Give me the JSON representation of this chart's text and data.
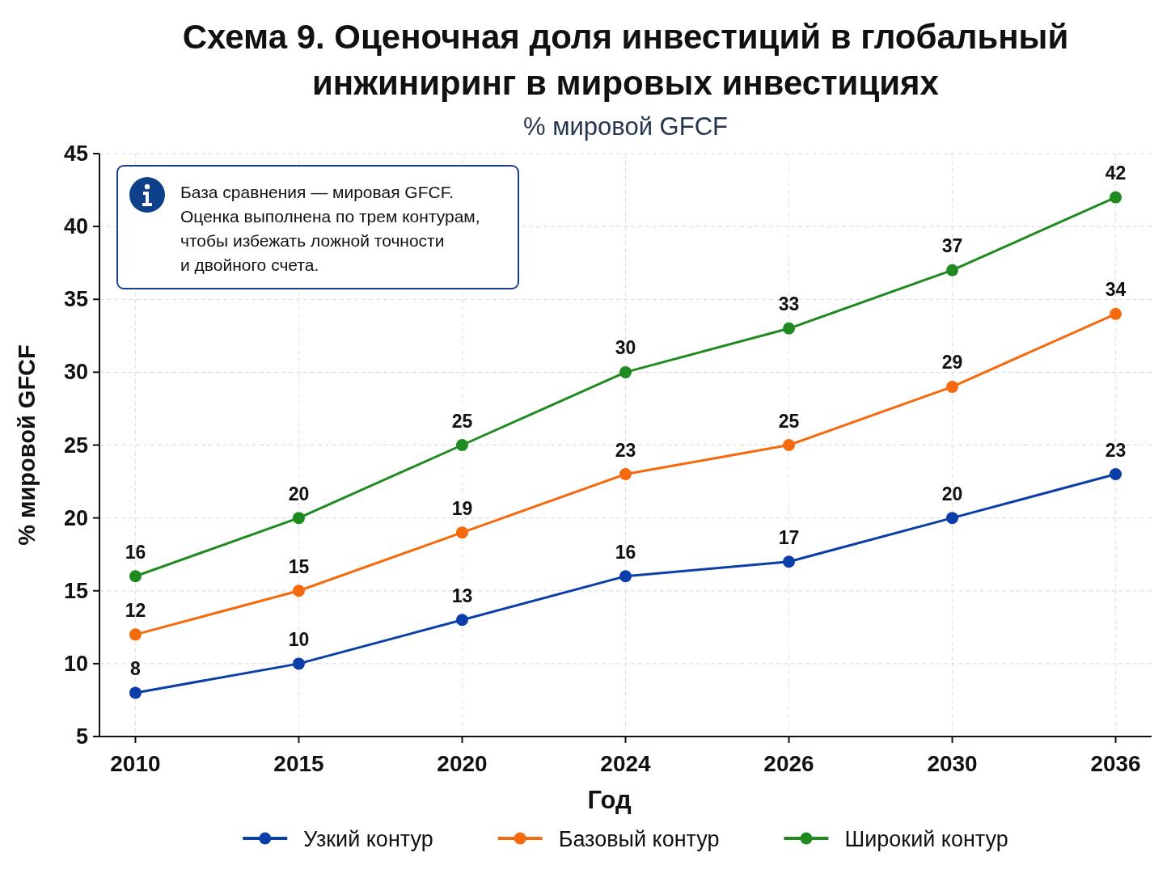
{
  "chart_data": {
    "type": "line",
    "title": "Схема 9. Оценочная доля инвестиций в глобальный инжиниринг в мировых инвестициях",
    "subtitle": "% мировой GFCF",
    "xlabel": "Год",
    "ylabel": "% мировой GFCF",
    "annotations": [
      "База сравнения — мировая GFCF.\nОценка выполнена по трем контурам,\nчтобы избежать ложной точности\nи двойного счета."
    ],
    "categories": [
      "2010",
      "2015",
      "2020",
      "2024",
      "2026",
      "2030",
      "2036"
    ],
    "series": [
      {
        "name": "Узкий контур",
        "color": "#0b3ea8",
        "values": [
          8,
          10,
          13,
          16,
          17,
          20,
          23
        ]
      },
      {
        "name": "Базовый контур",
        "color": "#f56a0c",
        "values": [
          12,
          15,
          19,
          23,
          25,
          29,
          34
        ]
      },
      {
        "name": "Широкий контур",
        "color": "#1f8a1f",
        "values": [
          16,
          20,
          25,
          30,
          33,
          37,
          42
        ]
      }
    ],
    "ylim": [
      5,
      45
    ],
    "yticks": [
      5,
      10,
      15,
      20,
      25,
      30,
      35,
      40,
      45
    ],
    "grid": true,
    "legend": "bottom",
    "marker": "circle",
    "data_labels": true
  }
}
